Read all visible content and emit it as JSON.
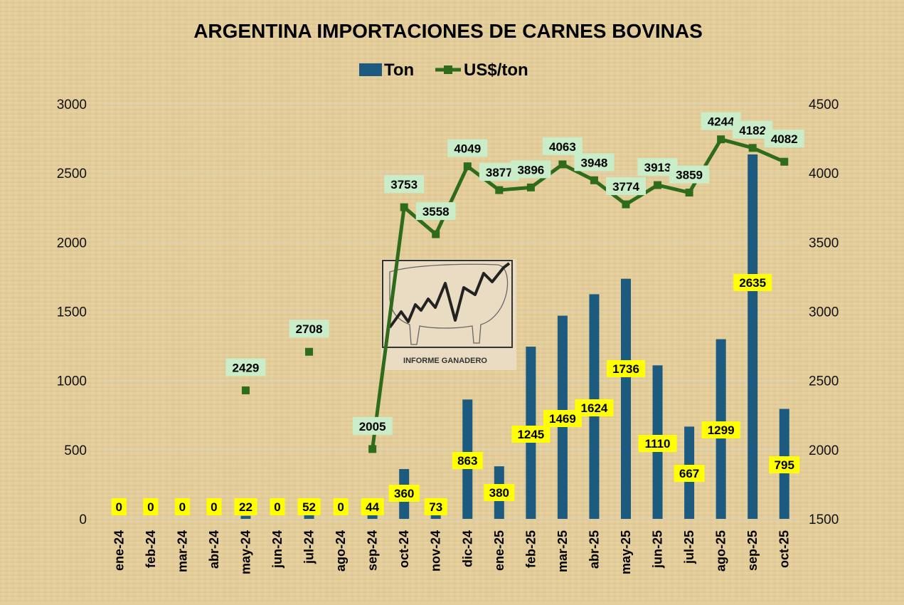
{
  "chart_data": {
    "type": "bar+line",
    "title": "ARGENTINA IMPORTACIONES DE CARNES BOVINAS",
    "categories": [
      "ene-24",
      "feb-24",
      "mar-24",
      "abr-24",
      "may-24",
      "jun-24",
      "jul-24",
      "ago-24",
      "sep-24",
      "oct-24",
      "nov-24",
      "dic-24",
      "ene-25",
      "feb-25",
      "mar-25",
      "abr-25",
      "may-25",
      "jun-25",
      "jul-25",
      "ago-25",
      "sep-25",
      "oct-25"
    ],
    "series": [
      {
        "name": "Ton",
        "type": "bar",
        "axis": "left",
        "color": "#1c5a7f",
        "values": [
          0,
          0,
          0,
          0,
          22,
          0,
          52,
          0,
          44,
          360,
          73,
          863,
          380,
          1245,
          1469,
          1624,
          1736,
          1110,
          667,
          1299,
          2635,
          795
        ]
      },
      {
        "name": "US$/ton",
        "type": "line",
        "axis": "right",
        "color": "#2e6b1a",
        "values": [
          null,
          null,
          null,
          null,
          2429,
          null,
          2708,
          null,
          2005,
          3753,
          3558,
          4049,
          3877,
          3896,
          4063,
          3948,
          3774,
          3913,
          3859,
          4244,
          4182,
          4082
        ]
      }
    ],
    "ylim_left": [
      0,
      3000
    ],
    "yticks_left": [
      "0",
      "500",
      "1000",
      "1500",
      "2000",
      "2500",
      "3000"
    ],
    "ylim_right": [
      1500,
      4500
    ],
    "yticks_right": [
      "1500",
      "2000",
      "2500",
      "3000",
      "3500",
      "4000",
      "4500"
    ],
    "legend_position": "top-center",
    "grid": true
  },
  "logo": {
    "text": "INFORME GANADERO"
  }
}
